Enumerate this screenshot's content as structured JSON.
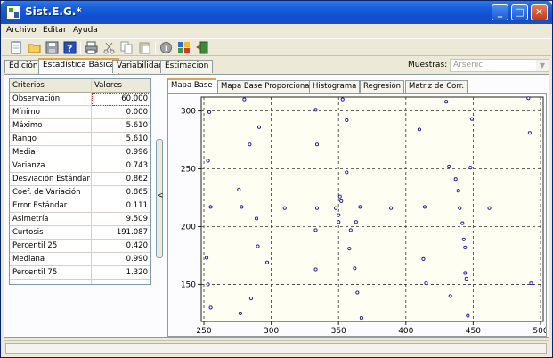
{
  "window": {
    "title": "Sist.E.G.*"
  },
  "titlebar_buttons": {
    "minimize": "_",
    "maximize": "□",
    "close": "✕"
  },
  "menu": [
    "Archivo",
    "Editar",
    "Ayuda"
  ],
  "toolbar": [
    "new-file-icon",
    "open-folder-icon",
    "save-icon",
    "help-icon",
    "print-icon",
    "cut-icon",
    "copy-icon",
    "paste-icon",
    "info-icon",
    "grid-chart-icon",
    "exit-icon"
  ],
  "main_tabs": [
    "Edición",
    "Estadística Básica",
    "Variabilidad",
    "Estimacion"
  ],
  "active_main_tab": 1,
  "muestras": {
    "label": "Muestras:",
    "value": "Arsenic"
  },
  "stats_table": {
    "headers": [
      "Criterios",
      "Valores"
    ],
    "rows": [
      [
        "Observación",
        "60.000"
      ],
      [
        "Mínimo",
        "0.000"
      ],
      [
        "Máximo",
        "5.610"
      ],
      [
        "Rango",
        "5.610"
      ],
      [
        "Media",
        "0.996"
      ],
      [
        "Varianza",
        "0.743"
      ],
      [
        "Desviación Estándar",
        "0.862"
      ],
      [
        "Coef. de Variación",
        "0.865"
      ],
      [
        "Error Estándar",
        "0.111"
      ],
      [
        "Asimetría",
        "9.509"
      ],
      [
        "Curtosis",
        "191.087"
      ],
      [
        "Percentil 25",
        "0.420"
      ],
      [
        "Mediana",
        "0.990"
      ],
      [
        "Percentil 75",
        "1.320"
      ]
    ]
  },
  "splitter_arrow": "<",
  "plot_tabs": [
    "Mapa Base",
    "Mapa Base Proporcional",
    "Histograma",
    "Regresión",
    "Matriz de Corr."
  ],
  "active_plot_tab": 0,
  "colors": {
    "titlebar": "#0f4fd0",
    "tab_accent": "#e8a33e",
    "point": "#1a1a8c"
  },
  "chart_data": {
    "type": "scatter",
    "title": "",
    "xlabel": "",
    "ylabel": "",
    "xlim": [
      248,
      502
    ],
    "ylim": [
      118,
      312
    ],
    "xticks": [
      250,
      300,
      350,
      400,
      450,
      500
    ],
    "yticks": [
      150,
      200,
      250,
      300
    ],
    "grid": true,
    "x": [
      254,
      253,
      255,
      252,
      255,
      253,
      280,
      291,
      284,
      276,
      278,
      289,
      297,
      290,
      277,
      285,
      310,
      333,
      334,
      334,
      333,
      333,
      348,
      350,
      350,
      351,
      352,
      356,
      353,
      356,
      359,
      358,
      362,
      364,
      367,
      366,
      363,
      389,
      410,
      414,
      413,
      415,
      430,
      432,
      433,
      437,
      439,
      440,
      442,
      443,
      444,
      444,
      445,
      446,
      449,
      448,
      462,
      491,
      492,
      493
    ],
    "y": [
      299,
      257,
      217,
      173,
      130,
      150,
      310,
      286,
      271,
      232,
      217,
      207,
      169,
      183,
      125,
      138,
      216,
      301,
      271,
      216,
      197,
      163,
      216,
      210,
      204,
      226,
      222,
      292,
      310,
      247,
      197,
      181,
      164,
      143,
      121,
      217,
      204,
      216,
      284,
      217,
      172,
      151,
      308,
      252,
      140,
      241,
      231,
      216,
      203,
      189,
      182,
      160,
      155,
      123,
      293,
      251,
      216,
      311,
      281,
      151
    ]
  }
}
